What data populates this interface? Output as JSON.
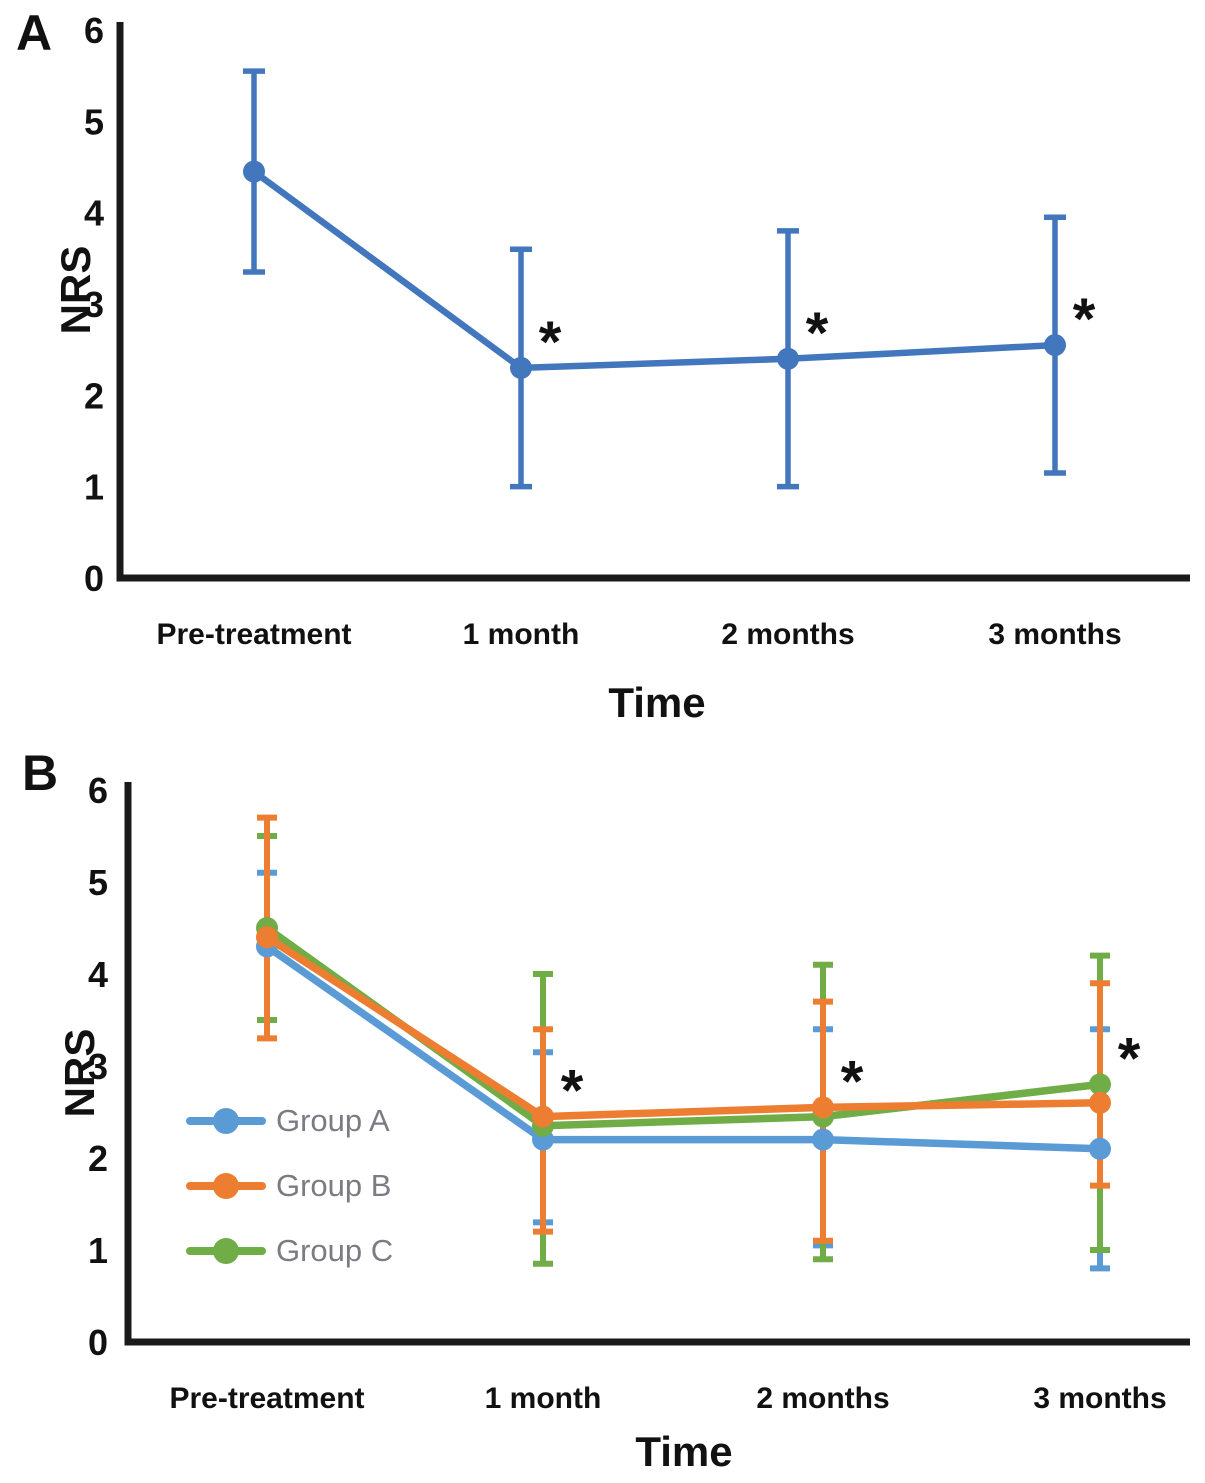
{
  "page": {
    "background": "#ffffff"
  },
  "colors": {
    "axis": "#1a1a1a",
    "text": "#111111",
    "legend_text": "#7b7b84",
    "chart_a_blue": "#4377BD",
    "group_a_blue": "#5B9BD5",
    "group_b_orange": "#ED7D31",
    "group_c_green": "#70AD47"
  },
  "chart_data": [
    {
      "type": "line",
      "panel_label": "A",
      "xlabel": "Time",
      "ylabel": "NRS",
      "ylim": [
        0,
        6
      ],
      "ytick_step": 1,
      "grid": false,
      "legend_position": "none",
      "categories": [
        "Pre-treatment",
        "1 month",
        "2 months",
        "3 months"
      ],
      "series": [
        {
          "name": "",
          "color": "#4377BD",
          "values": [
            4.45,
            2.3,
            2.4,
            2.55
          ],
          "err_hi": [
            5.55,
            3.6,
            3.8,
            3.95
          ],
          "err_lo": [
            3.35,
            1.0,
            1.0,
            1.15
          ]
        }
      ],
      "sig_marker": "*",
      "sig_categories": [
        1,
        2,
        3
      ]
    },
    {
      "type": "line",
      "panel_label": "B",
      "xlabel": "Time",
      "ylabel": "NRS",
      "ylim": [
        0,
        6
      ],
      "ytick_step": 1,
      "grid": false,
      "legend_position": "inside-left",
      "categories": [
        "Pre-treatment",
        "1 month",
        "2 months",
        "3 months"
      ],
      "series": [
        {
          "name": "Group A",
          "color": "#5B9BD5",
          "values": [
            4.3,
            2.2,
            2.2,
            2.1
          ],
          "err_hi": [
            5.1,
            3.15,
            3.4,
            3.4
          ],
          "err_lo": [
            3.5,
            1.3,
            1.05,
            0.8
          ]
        },
        {
          "name": "Group B",
          "color": "#ED7D31",
          "values": [
            4.4,
            2.45,
            2.55,
            2.6
          ],
          "err_hi": [
            5.7,
            3.4,
            3.7,
            3.9
          ],
          "err_lo": [
            3.3,
            1.2,
            1.1,
            1.7
          ]
        },
        {
          "name": "Group C",
          "color": "#70AD47",
          "values": [
            4.5,
            2.35,
            2.45,
            2.8
          ],
          "err_hi": [
            5.5,
            4.0,
            4.1,
            4.2
          ],
          "err_lo": [
            3.5,
            0.85,
            0.9,
            1.0
          ]
        }
      ],
      "sig_marker": "*",
      "sig_categories": [
        1,
        2,
        3
      ]
    }
  ]
}
